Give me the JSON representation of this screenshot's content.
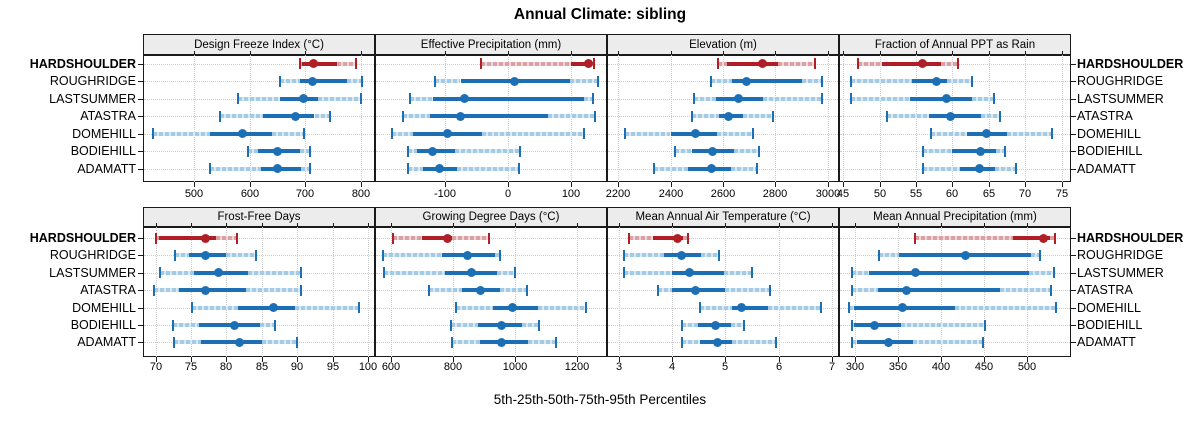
{
  "title": "Annual Climate: sibling",
  "caption": "5th-25th-50th-75th-95th Percentiles",
  "colors": {
    "normal_dark": "#1d6fb5",
    "normal_light": "#a3cbe6",
    "normal_lighter": "#d9eaf5",
    "highlight_dark": "#b01f26",
    "highlight_light": "#dba0a4",
    "highlight_lighter": "#f0d6d8",
    "grid": "#cdcdcd",
    "strip_bg": "#ececec",
    "border": "#1a1a1a"
  },
  "sites": [
    {
      "name": "HARDSHOULDER",
      "highlight": true
    },
    {
      "name": "ROUGHRIDGE",
      "highlight": false
    },
    {
      "name": "LASTSUMMER",
      "highlight": false
    },
    {
      "name": "ATASTRA",
      "highlight": false
    },
    {
      "name": "DOMEHILL",
      "highlight": false
    },
    {
      "name": "BODIEHILL",
      "highlight": false
    },
    {
      "name": "ADAMATT",
      "highlight": false
    }
  ],
  "chart_data": {
    "type": "dotplot",
    "note": "Each row shows 5th-25th-50th-75th-95th percentiles; dot = median; dark bar = 25th-75th; light dashed = tails",
    "percentiles": [
      5,
      25,
      50,
      75,
      95
    ],
    "panels": [
      {
        "title": "Design Freeze Index (°C)",
        "band": 1,
        "xlim": [
          408,
          826
        ],
        "ticks": [
          500,
          600,
          700,
          800
        ],
        "tick_labels": [
          "500",
          "600",
          "700",
          "800"
        ],
        "values": {
          "HARDSHOULDER": [
            690,
            695,
            716,
            758,
            791
          ],
          "ROUGHRIDGE": [
            655,
            690,
            714,
            775,
            803
          ],
          "LASTSUMMER": [
            580,
            655,
            697,
            723,
            800
          ],
          "ATASTRA": [
            546,
            625,
            682,
            717,
            745
          ],
          "DOMEHILL": [
            426,
            529,
            588,
            640,
            698
          ],
          "BODIEHILL": [
            597,
            615,
            651,
            690,
            708
          ],
          "ADAMATT": [
            528,
            621,
            650,
            692,
            709
          ]
        }
      },
      {
        "title": "Effective Precipitation (mm)",
        "band": 1,
        "xlim": [
          -212,
          157
        ],
        "ticks": [
          -100,
          0,
          100
        ],
        "tick_labels": [
          "-100",
          "0",
          "100"
        ],
        "values": {
          "HARDSHOULDER": [
            -44,
            100,
            128,
            133,
            136
          ],
          "ROUGHRIDGE": [
            -117,
            -76,
            10,
            98,
            143
          ],
          "LASTSUMMER": [
            -156,
            -119,
            -69,
            120,
            135
          ],
          "ATASTRA": [
            -168,
            -124,
            -76,
            63,
            138
          ],
          "DOMEHILL": [
            -185,
            -151,
            -96,
            -42,
            120
          ],
          "BODIEHILL": [
            -160,
            -145,
            -121,
            -85,
            18
          ],
          "ADAMATT": [
            -159,
            -135,
            -109,
            -82,
            17
          ]
        }
      },
      {
        "title": "Elevation (m)",
        "band": 1,
        "xlim": [
          2158,
          3042
        ],
        "ticks": [
          2200,
          2400,
          2600,
          2800,
          3000
        ],
        "tick_labels": [
          "2200",
          "2400",
          "2600",
          "2800",
          "3000"
        ],
        "values": {
          "HARDSHOULDER": [
            2580,
            2616,
            2752,
            2808,
            2950
          ],
          "ROUGHRIDGE": [
            2554,
            2635,
            2688,
            2900,
            2978
          ],
          "LASTSUMMER": [
            2490,
            2573,
            2659,
            2752,
            2977
          ],
          "ATASTRA": [
            2483,
            2583,
            2622,
            2678,
            2789
          ],
          "DOMEHILL": [
            2227,
            2400,
            2495,
            2579,
            2715
          ],
          "BODIEHILL": [
            2416,
            2480,
            2561,
            2641,
            2737
          ],
          "ADAMATT": [
            2338,
            2468,
            2557,
            2629,
            2731
          ]
        }
      },
      {
        "title": "Fraction of Annual PPT as Rain",
        "band": 1,
        "xlim": [
          44.4,
          76.3
        ],
        "ticks": [
          45,
          50,
          55,
          60,
          65,
          70,
          75
        ],
        "tick_labels": [
          "45",
          "50",
          "55",
          "60",
          "65",
          "70",
          "75"
        ],
        "values": {
          "HARDSHOULDER": [
            47.0,
            50.3,
            55.9,
            58.4,
            60.7
          ],
          "ROUGHRIDGE": [
            46.0,
            54.5,
            57.8,
            59.3,
            62.7
          ],
          "LASTSUMMER": [
            46.0,
            54.2,
            59.2,
            62.7,
            65.7
          ],
          "ATASTRA": [
            51.0,
            56.8,
            59.7,
            63.9,
            66.6
          ],
          "DOMEHILL": [
            57.0,
            62.0,
            64.7,
            67.5,
            73.7
          ],
          "BODIEHILL": [
            56.0,
            60.0,
            63.8,
            66.0,
            67.2
          ],
          "ADAMATT": [
            56.0,
            61.0,
            63.7,
            65.9,
            68.7
          ]
        }
      },
      {
        "title": "Frost-Free Days",
        "band": 2,
        "xlim": [
          68.2,
          101.0
        ],
        "ticks": [
          70,
          75,
          80,
          85,
          90,
          95,
          100
        ],
        "tick_labels": [
          "70",
          "75",
          "80",
          "85",
          "90",
          "95",
          "100"
        ],
        "values": {
          "HARDSHOULDER": [
            70.0,
            70.5,
            77.0,
            78.5,
            81.5
          ],
          "ROUGHRIDGE": [
            72.7,
            74.7,
            77.0,
            80.0,
            84.2
          ],
          "LASTSUMMER": [
            70.6,
            75.4,
            78.9,
            83.0,
            90.6
          ],
          "ATASTRA": [
            69.7,
            73.3,
            77.0,
            82.8,
            90.6
          ],
          "DOMEHILL": [
            75.1,
            81.6,
            86.7,
            89.7,
            98.7
          ],
          "BODIEHILL": [
            72.5,
            76.1,
            81.2,
            84.7,
            86.8
          ],
          "ADAMATT": [
            72.6,
            76.4,
            81.9,
            85.0,
            90.0
          ]
        }
      },
      {
        "title": "Growing Degree Days (°C)",
        "band": 2,
        "xlim": [
          548,
          1298
        ],
        "ticks": [
          600,
          800,
          1000,
          1200
        ],
        "tick_labels": [
          "600",
          "800",
          "1000",
          "1200"
        ],
        "values": {
          "HARDSHOULDER": [
            605,
            700,
            783,
            797,
            915
          ],
          "ROUGHRIDGE": [
            575,
            765,
            847,
            935,
            952
          ],
          "LASTSUMMER": [
            578,
            775,
            859,
            941,
            1000
          ],
          "ATASTRA": [
            724,
            829,
            890,
            952,
            1038
          ],
          "DOMEHILL": [
            811,
            931,
            992,
            1075,
            1230
          ],
          "BODIEHILL": [
            795,
            882,
            957,
            1022,
            1077
          ],
          "ADAMATT": [
            797,
            888,
            957,
            1043,
            1134
          ]
        }
      },
      {
        "title": "Mean Annual Air Temperature (°C)",
        "band": 2,
        "xlim": [
          2.78,
          7.13
        ],
        "ticks": [
          3,
          4,
          5,
          6,
          7
        ],
        "tick_labels": [
          "3",
          "4",
          "5",
          "6",
          "7"
        ],
        "values": {
          "HARDSHOULDER": [
            3.2,
            3.65,
            4.1,
            4.2,
            4.3
          ],
          "ROUGHRIDGE": [
            3.1,
            3.85,
            4.17,
            4.55,
            4.88
          ],
          "LASTSUMMER": [
            3.1,
            4.0,
            4.32,
            4.98,
            5.49
          ],
          "ATASTRA": [
            3.73,
            4.0,
            4.44,
            5.0,
            5.83
          ],
          "DOMEHILL": [
            4.52,
            5.13,
            5.31,
            5.8,
            6.8
          ],
          "BODIEHILL": [
            4.18,
            4.49,
            4.82,
            5.1,
            5.34
          ],
          "ADAMATT": [
            4.18,
            4.52,
            4.85,
            5.13,
            5.94
          ]
        }
      },
      {
        "title": "Mean Annual Precipitation (mm)",
        "band": 2,
        "xlim": [
          281,
          551
        ],
        "ticks": [
          300,
          350,
          400,
          450,
          500
        ],
        "tick_labels": [
          "300",
          "350",
          "400",
          "450",
          "500"
        ],
        "values": {
          "HARDSHOULDER": [
            370,
            484,
            519,
            527,
            532
          ],
          "ROUGHRIDGE": [
            327,
            351,
            428,
            504,
            515
          ],
          "LASTSUMMER": [
            296,
            316,
            370,
            502,
            531
          ],
          "ATASTRA": [
            296,
            326,
            359,
            468,
            528
          ],
          "DOMEHILL": [
            293,
            299,
            355,
            416,
            533
          ],
          "BODIEHILL": [
            296,
            299,
            322,
            353,
            451
          ],
          "ADAMATT": [
            296,
            302,
            339,
            367,
            449
          ]
        }
      }
    ]
  }
}
